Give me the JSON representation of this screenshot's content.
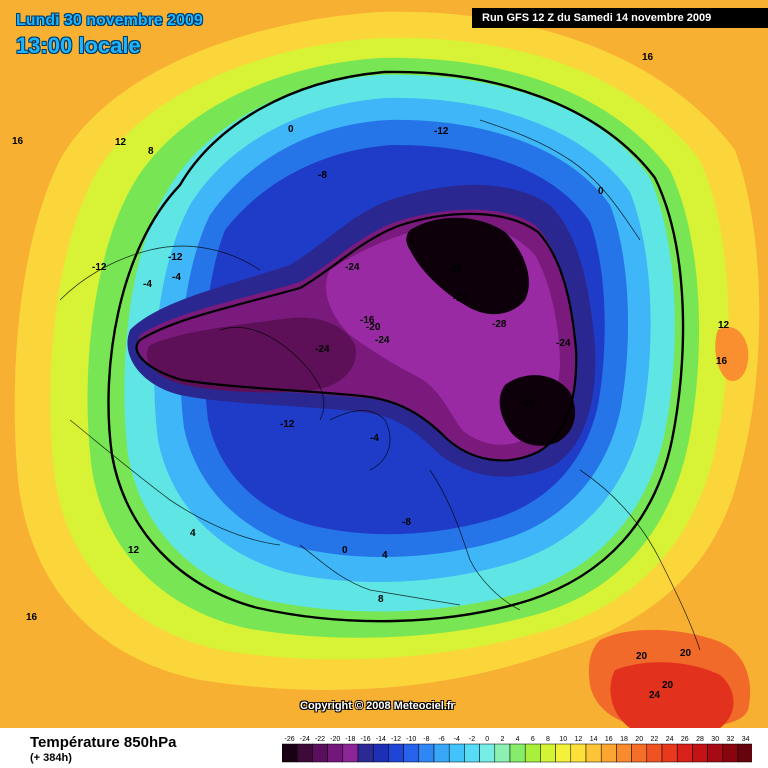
{
  "header": {
    "date_line": "Lundi 30 novembre 2009",
    "time_line": "13:00 locale",
    "run_info": "Run GFS 12 Z du Samedi 14 novembre 2009"
  },
  "map": {
    "copyright": "Copyright © 2008 Meteociel.fr",
    "contour_labels": [
      "-28",
      "-28",
      "-28",
      "-24",
      "-24",
      "-24",
      "-24",
      "-24",
      "-20",
      "-16",
      "-12",
      "-12",
      "-12",
      "-12",
      "-8",
      "-8",
      "-4",
      "-4",
      "-4",
      "0",
      "0",
      "0",
      "4",
      "4",
      "8",
      "8",
      "12",
      "12",
      "12",
      "16",
      "16",
      "16",
      "16",
      "20",
      "20",
      "20",
      "24"
    ]
  },
  "footer": {
    "variable": "Température 850hPa",
    "lead_time": "(+ 384h)"
  },
  "legend": {
    "ticks": [
      "-26",
      "-24",
      "-22",
      "-20",
      "-18",
      "-16",
      "-14",
      "-12",
      "-10",
      "-8",
      "-6",
      "-4",
      "-2",
      "0",
      "2",
      "4",
      "6",
      "8",
      "10",
      "12",
      "14",
      "16",
      "18",
      "20",
      "22",
      "24",
      "26",
      "28",
      "30",
      "32",
      "34"
    ],
    "colors": [
      "#1a0013",
      "#3d0a3a",
      "#5a0f5c",
      "#74177a",
      "#8c2596",
      "#2c2894",
      "#1c2fb5",
      "#1f45d6",
      "#2663ea",
      "#2f86f5",
      "#39a7f8",
      "#43c3fb",
      "#57dcf7",
      "#77eee5",
      "#8bf0b0",
      "#86ec6a",
      "#a9f03c",
      "#d3f434",
      "#f3f13a",
      "#fde13a",
      "#fdc437",
      "#fba633",
      "#f98a2e",
      "#f66f29",
      "#f15223",
      "#e8391e",
      "#d92119",
      "#c31315",
      "#a60a12",
      "#880510",
      "#66030c"
    ]
  }
}
